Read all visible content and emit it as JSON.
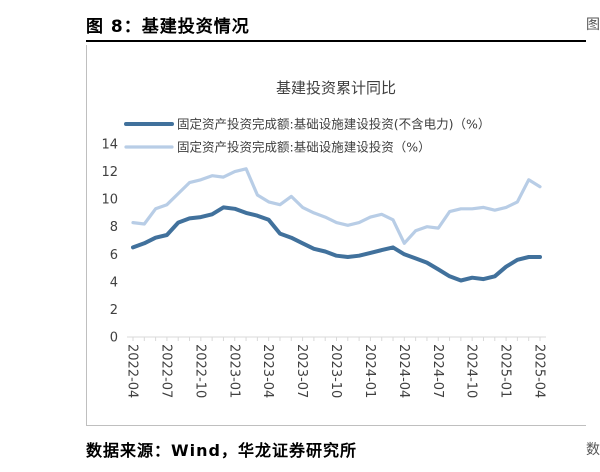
{
  "figure": {
    "title": "图 8：基建投资情况",
    "source": "数据来源：Wind，华龙证券研究所",
    "right_edge_top": "图",
    "right_edge_bottom": "数"
  },
  "colors": {
    "series1": "#41719c",
    "series2": "#b8cde6",
    "axis": "#d9d9d9",
    "text": "#404040"
  },
  "chart_data": {
    "type": "line",
    "title": "基建投资累计同比",
    "ylim": [
      0,
      14
    ],
    "yticks": [
      "0",
      "2",
      "4",
      "6",
      "8",
      "10",
      "12",
      "14"
    ],
    "xticks": [
      "2022-04",
      "2022-07",
      "2022-10",
      "2023-01",
      "2023-04",
      "2023-07",
      "2023-10",
      "2024-01",
      "2024-04",
      "2024-07",
      "2024-10",
      "2025-01",
      "2025-04"
    ],
    "legend_position": "top-left",
    "grid": false,
    "x": [
      "2022-04",
      "2022-05",
      "2022-06",
      "2022-07",
      "2022-08",
      "2022-09",
      "2022-10",
      "2022-11",
      "2022-12",
      "2023-01",
      "2023-02",
      "2023-03",
      "2023-04",
      "2023-05",
      "2023-06",
      "2023-07",
      "2023-08",
      "2023-09",
      "2023-10",
      "2023-11",
      "2023-12",
      "2024-01",
      "2024-02",
      "2024-03",
      "2024-04",
      "2024-05",
      "2024-06",
      "2024-07",
      "2024-08",
      "2024-09",
      "2024-10",
      "2024-11",
      "2024-12",
      "2025-01",
      "2025-02",
      "2025-03",
      "2025-04"
    ],
    "series": [
      {
        "name": "固定资产投资完成额:基础设施建设投资(不含电力)（%）",
        "values": [
          6.5,
          6.8,
          7.2,
          7.4,
          8.3,
          8.6,
          8.7,
          8.9,
          9.4,
          9.3,
          9.0,
          8.8,
          8.5,
          7.5,
          7.2,
          6.8,
          6.4,
          6.2,
          5.9,
          5.8,
          5.9,
          6.1,
          6.3,
          6.5,
          6.0,
          5.7,
          5.4,
          4.9,
          4.4,
          4.1,
          4.3,
          4.2,
          4.4,
          5.1,
          5.6,
          5.8,
          5.8
        ]
      },
      {
        "name": "固定资产投资完成额:基础设施建设投资（%）",
        "values": [
          8.3,
          8.2,
          9.3,
          9.6,
          10.4,
          11.2,
          11.4,
          11.7,
          11.6,
          12.0,
          12.2,
          10.3,
          9.8,
          9.6,
          10.2,
          9.4,
          9.0,
          8.7,
          8.3,
          8.1,
          8.3,
          8.7,
          8.9,
          8.5,
          6.8,
          7.7,
          8.0,
          7.9,
          9.1,
          9.3,
          9.3,
          9.4,
          9.2,
          9.4,
          9.8,
          11.4,
          10.9
        ]
      }
    ]
  }
}
